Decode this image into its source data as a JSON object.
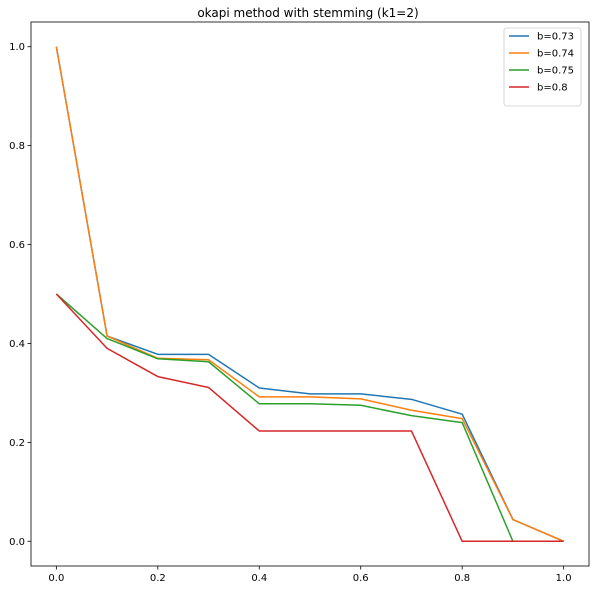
{
  "chart_data": {
    "type": "line",
    "title": "okapi method with stemming (k1=2)",
    "xlabel": "",
    "ylabel": "",
    "xlim": [
      -0.05,
      1.05
    ],
    "ylim": [
      -0.05,
      1.05
    ],
    "xticks": [
      0.0,
      0.2,
      0.4,
      0.6,
      0.8,
      1.0
    ],
    "xtick_labels": [
      "0.0",
      "0.2",
      "0.4",
      "0.6",
      "0.8",
      "1.0"
    ],
    "yticks": [
      0.0,
      0.2,
      0.4,
      0.6,
      0.8,
      1.0
    ],
    "ytick_labels": [
      "0.0",
      "0.2",
      "0.4",
      "0.6",
      "0.8",
      "1.0"
    ],
    "grid": false,
    "legend_position": "top-right",
    "x": [
      0.0,
      0.1,
      0.2,
      0.3,
      0.4,
      0.5,
      0.6,
      0.7,
      0.8,
      0.9,
      1.0
    ],
    "series": [
      {
        "name": "b=0.73",
        "color": "#1f77b4",
        "values": [
          1.0,
          0.415,
          0.378,
          0.378,
          0.31,
          0.298,
          0.298,
          0.287,
          0.257,
          0.044,
          0.0
        ]
      },
      {
        "name": "b=0.74",
        "color": "#ff7f0e",
        "values": [
          1.0,
          0.415,
          0.37,
          0.367,
          0.292,
          0.292,
          0.288,
          0.265,
          0.248,
          0.044,
          0.0
        ]
      },
      {
        "name": "b=0.75",
        "color": "#2ca02c",
        "values": [
          0.5,
          0.41,
          0.369,
          0.363,
          0.278,
          0.278,
          0.275,
          0.254,
          0.24,
          0.0,
          0.0
        ]
      },
      {
        "name": "b=0.8",
        "color": "#d62728",
        "values": [
          0.5,
          0.39,
          0.333,
          0.311,
          0.223,
          0.223,
          0.223,
          0.223,
          0.0,
          0.0,
          0.0
        ]
      }
    ]
  }
}
